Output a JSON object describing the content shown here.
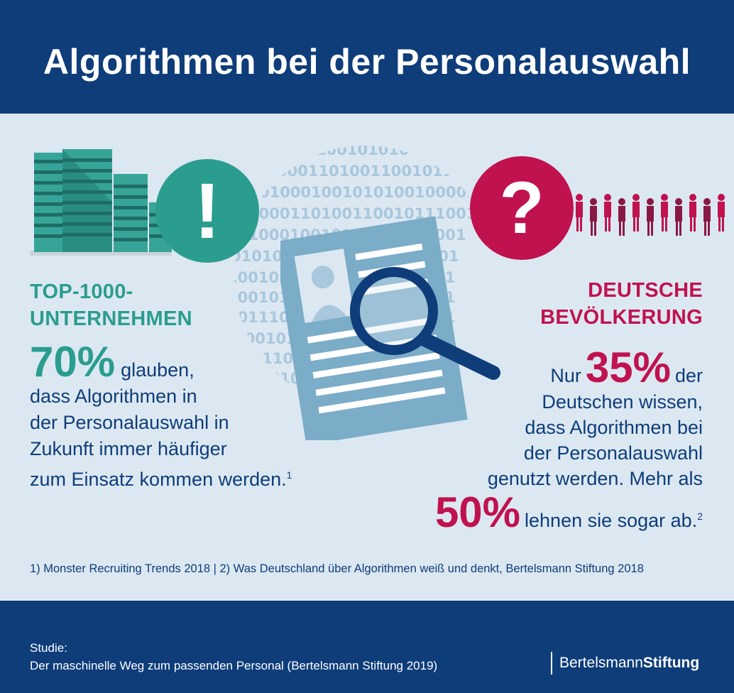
{
  "header": {
    "title": "Algorithmen bei der Personalauswahl"
  },
  "binary": {
    "lines": [
      "1001010100",
      "0001101001100101110",
      "010001001010100100001",
      "1000110100110010111001",
      "0100010010101001000001",
      "0101001010100100000001",
      "1001010101001010000001",
      "1001010101001010000001",
      "1011100101001010000011",
      "1001010101001010000",
      "0111001010010100101",
      "101010101010100",
      "00101010101"
    ]
  },
  "icons": {
    "exclamation": "!",
    "question": "?"
  },
  "left": {
    "label_line1": "TOP-1000-",
    "label_line2": "UNTERNEHMEN",
    "stat": "70%",
    "line1": "glauben,",
    "line2": "dass Algorithmen in",
    "line3": "der Personalauswahl in",
    "line4": "Zukunft immer häufiger",
    "line5": "zum Einsatz kommen werden.",
    "footnote": "1"
  },
  "right": {
    "label_line1": "DEUTSCHE",
    "label_line2": "BEVÖLKERUNG",
    "pre": "Nur",
    "stat": "35%",
    "post": "der",
    "line2": "Deutschen wissen,",
    "line3": "dass Algorithmen bei",
    "line4": "der Personalauswahl",
    "line5": "genutzt werden. Mehr als",
    "stat2": "50%",
    "line6": "lehnen sie sogar ab.",
    "footnote": "2"
  },
  "sources": "1) Monster Recruiting Trends 2018 | 2) Was Deutschland über Algorithmen weiß und denkt, Bertelsmann Stiftung 2018",
  "footer": {
    "study_label": "Studie:",
    "study_title": "Der maschinelle Weg zum passenden Personal (Bertelsmann Stiftung 2019)",
    "logo_a": "Bertelsmann",
    "logo_b": "Stiftung"
  },
  "colors": {
    "navy": "#0e3d7a",
    "teal": "#2a9d8f",
    "red": "#c0124f",
    "light": "#dce8f1",
    "doc": "#7bacc8"
  }
}
